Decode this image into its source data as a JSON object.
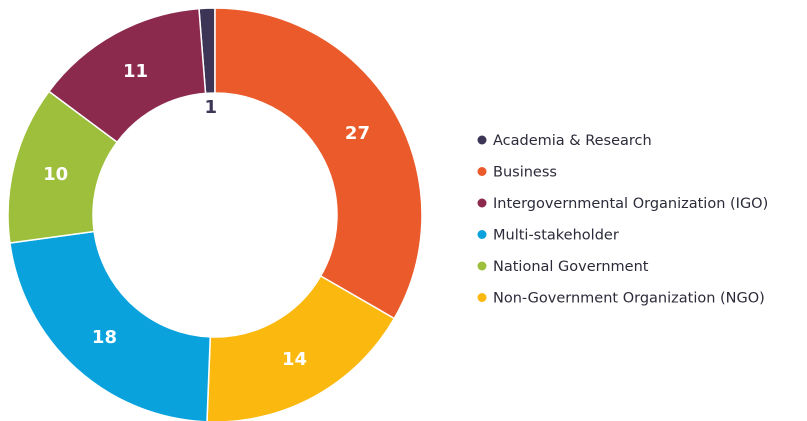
{
  "chart_data": {
    "type": "donut",
    "categories": [
      "Academia & Research",
      "Business",
      "Non-Government Organization (NGO)",
      "Multi-stakeholder",
      "National Government",
      "Intergovernmental Organization (IGO)"
    ],
    "values": [
      1,
      27,
      14,
      18,
      10,
      11
    ],
    "colors": [
      "#3d3556",
      "#eb5a2a",
      "#fbb80f",
      "#0aa2dc",
      "#9dbf3b",
      "#8c2a4e"
    ],
    "legend": "right"
  }
}
